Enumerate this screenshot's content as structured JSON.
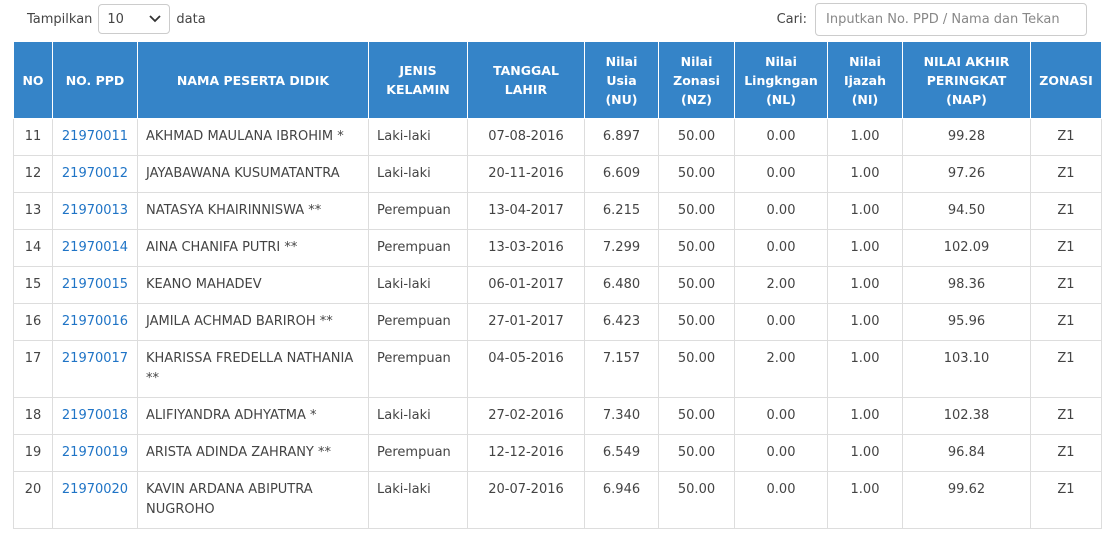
{
  "controls": {
    "show_label": "Tampilkan",
    "show_value": "10",
    "show_suffix": "data",
    "search_label": "Cari:",
    "search_placeholder": "Inputkan No. PPD / Nama dan Tekan"
  },
  "table": {
    "header": [
      "NO",
      "NO. PPD",
      "NAMA PESERTA DIDIK",
      "JENIS KELAMIN",
      "TANGGAL LAHIR",
      "Nilai Usia (NU)",
      "Nilai Zonasi (NZ)",
      "Nilai Lingkngan (NL)",
      "Nilai Ijazah (NI)",
      "NILAI AKHIR PERINGKAT (NAP)",
      "ZONASI"
    ],
    "rows": [
      [
        "11",
        "21970011",
        "AKHMAD MAULANA IBROHIM *",
        "Laki-laki",
        "07-08-2016",
        "6.897",
        "50.00",
        "0.00",
        "1.00",
        "99.28",
        "Z1"
      ],
      [
        "12",
        "21970012",
        "JAYABAWANA KUSUMATANTRA",
        "Laki-laki",
        "20-11-2016",
        "6.609",
        "50.00",
        "0.00",
        "1.00",
        "97.26",
        "Z1"
      ],
      [
        "13",
        "21970013",
        "NATASYA KHAIRINNISWA **",
        "Perempuan",
        "13-04-2017",
        "6.215",
        "50.00",
        "0.00",
        "1.00",
        "94.50",
        "Z1"
      ],
      [
        "14",
        "21970014",
        "AINA CHANIFA PUTRI **",
        "Perempuan",
        "13-03-2016",
        "7.299",
        "50.00",
        "0.00",
        "1.00",
        "102.09",
        "Z1"
      ],
      [
        "15",
        "21970015",
        "KEANO MAHADEV",
        "Laki-laki",
        "06-01-2017",
        "6.480",
        "50.00",
        "2.00",
        "1.00",
        "98.36",
        "Z1"
      ],
      [
        "16",
        "21970016",
        "JAMILA ACHMAD BARIROH **",
        "Perempuan",
        "27-01-2017",
        "6.423",
        "50.00",
        "0.00",
        "1.00",
        "95.96",
        "Z1"
      ],
      [
        "17",
        "21970017",
        "KHARISSA FREDELLA NATHANIA **",
        "Perempuan",
        "04-05-2016",
        "7.157",
        "50.00",
        "2.00",
        "1.00",
        "103.10",
        "Z1"
      ],
      [
        "18",
        "21970018",
        "ALIFIYANDRA ADHYATMA *",
        "Laki-laki",
        "27-02-2016",
        "7.340",
        "50.00",
        "0.00",
        "1.00",
        "102.38",
        "Z1"
      ],
      [
        "19",
        "21970019",
        "ARISTA ADINDA ZAHRANY **",
        "Perempuan",
        "12-12-2016",
        "6.549",
        "50.00",
        "0.00",
        "1.00",
        "96.84",
        "Z1"
      ],
      [
        "20",
        "21970020",
        "KAVIN ARDANA ABIPUTRA NUGROHO",
        "Laki-laki",
        "20-07-2016",
        "6.946",
        "50.00",
        "0.00",
        "1.00",
        "99.62",
        "Z1"
      ]
    ]
  }
}
